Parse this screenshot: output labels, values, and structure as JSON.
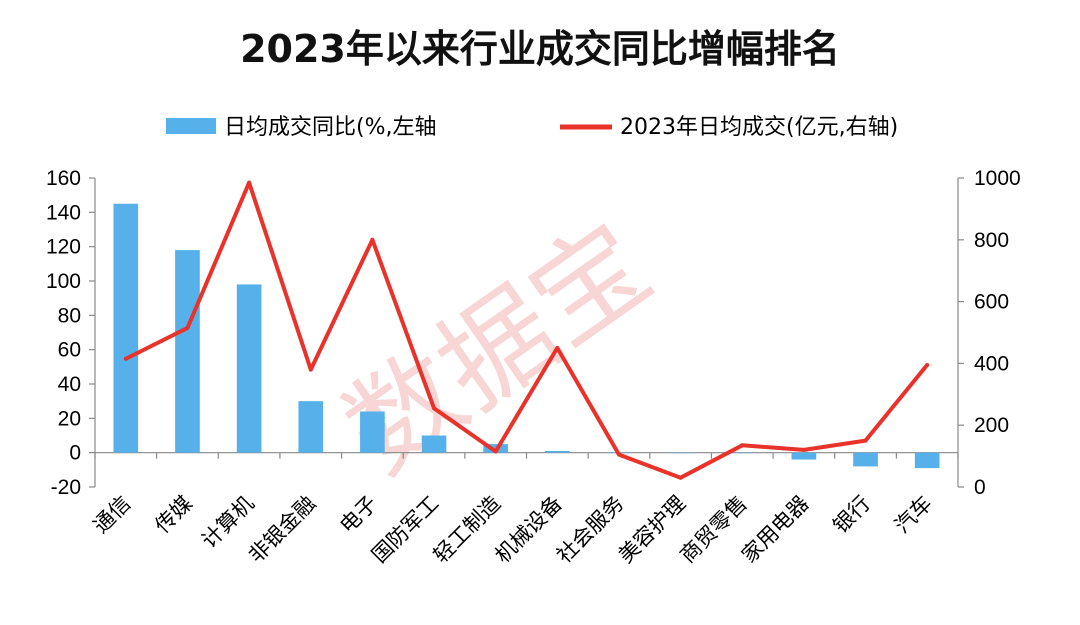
{
  "chart_data": {
    "type": "bar",
    "title": "2023年以来行业成交同比增幅排名",
    "watermark": "数据宝",
    "categories": [
      "通信",
      "传媒",
      "计算机",
      "非银金融",
      "电子",
      "国防军工",
      "轻工制造",
      "机械设备",
      "社会服务",
      "美容护理",
      "商贸零售",
      "家用电器",
      "银行",
      "汽车"
    ],
    "series": [
      {
        "name": "日均成交同比(%,左轴",
        "type": "bar",
        "axis": "left",
        "color": "#56b0ea",
        "values": [
          145,
          118,
          98,
          30,
          24,
          10,
          5,
          1,
          0,
          0,
          0,
          -4,
          -8,
          -9
        ]
      },
      {
        "name": "2023年日均成交(亿元,右轴)",
        "type": "line",
        "axis": "right",
        "color": "#e8322a",
        "values": [
          415,
          515,
          985,
          380,
          800,
          255,
          115,
          450,
          105,
          30,
          135,
          120,
          150,
          395
        ]
      }
    ],
    "y_left": {
      "min": -20,
      "max": 160,
      "ticks": [
        -20,
        0,
        20,
        40,
        60,
        80,
        100,
        120,
        140,
        160
      ]
    },
    "y_right": {
      "min": 0,
      "max": 1000,
      "ticks": [
        0,
        200,
        400,
        600,
        800,
        1000
      ]
    },
    "grid": false,
    "legend_position": "top"
  }
}
